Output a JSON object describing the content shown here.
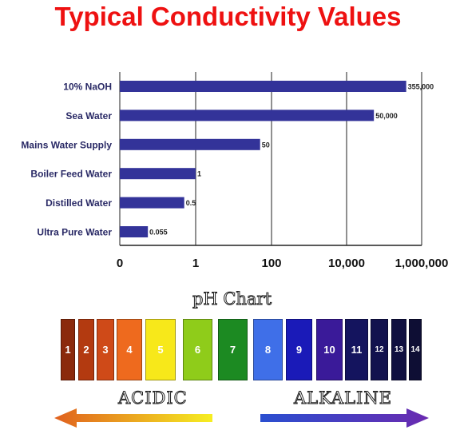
{
  "title": "Typical Conductivity Values",
  "chart_data": {
    "type": "bar",
    "orientation": "horizontal",
    "x_scale": "log",
    "categories": [
      "10% NaOH",
      "Sea Water",
      "Mains Water Supply",
      "Boiler Feed Water",
      "Distilled Water",
      "Ultra Pure Water"
    ],
    "values": [
      355000,
      50000,
      50,
      1,
      0.5,
      0.055
    ],
    "value_labels": [
      "355,000",
      "50,000",
      "50",
      "1",
      "0.5",
      "0.055"
    ],
    "x_ticks": [
      "0",
      "1",
      "100",
      "10,000",
      "1,000,000"
    ],
    "grid": true,
    "bar_color": "#333399"
  },
  "ph_chart": {
    "title": "pH Chart",
    "boxes": [
      {
        "label": "1",
        "color": "#8b2a0c"
      },
      {
        "label": "2",
        "color": "#b33a10"
      },
      {
        "label": "3",
        "color": "#cf4a18"
      },
      {
        "label": "4",
        "color": "#ee6a1e"
      },
      {
        "label": "5",
        "color": "#f7e81a"
      },
      {
        "label": "6",
        "color": "#8fcc1a"
      },
      {
        "label": "7",
        "color": "#1c8a22"
      },
      {
        "label": "8",
        "color": "#3f6fe8"
      },
      {
        "label": "9",
        "color": "#1a1ab8"
      },
      {
        "label": "10",
        "color": "#3a1a99"
      },
      {
        "label": "11",
        "color": "#14145e"
      },
      {
        "label": "12",
        "color": "#12124e"
      },
      {
        "label": "13",
        "color": "#101040"
      },
      {
        "label": "14",
        "color": "#0e0e34"
      }
    ],
    "acidic_label": "ACIDIC",
    "alkaline_label": "ALKALINE"
  }
}
